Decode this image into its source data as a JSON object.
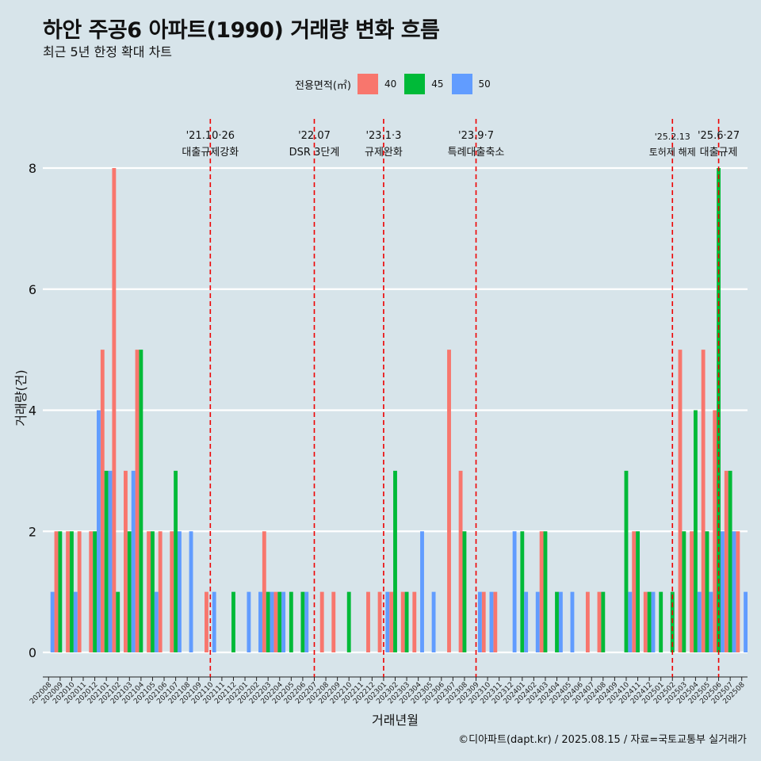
{
  "title": "하안 주공6 아파트(1990) 거래량 변화 흐름",
  "subtitle": "최근 5년 한정 확대 차트",
  "caption": "©디아파트(dapt.kr) / 2025.08.15 / 자료=국토교통부 실거래가",
  "legend": {
    "title": "전용면적(㎡)",
    "items": [
      {
        "label": "40",
        "color": "#f8766d"
      },
      {
        "label": "45",
        "color": "#00ba38"
      },
      {
        "label": "50",
        "color": "#619cff"
      }
    ]
  },
  "chart_data": {
    "type": "bar",
    "xlabel": "거래년월",
    "ylabel": "거래량(건)",
    "ylim": [
      0,
      8
    ],
    "yticks": [
      0,
      2,
      4,
      6,
      8
    ],
    "categories": [
      "202008",
      "202009",
      "202010",
      "202011",
      "202012",
      "202101",
      "202102",
      "202103",
      "202104",
      "202105",
      "202106",
      "202107",
      "202108",
      "202109",
      "202110",
      "202111",
      "202112",
      "202201",
      "202202",
      "202203",
      "202204",
      "202205",
      "202206",
      "202207",
      "202208",
      "202209",
      "202210",
      "202211",
      "202212",
      "202301",
      "202302",
      "202303",
      "202304",
      "202305",
      "202306",
      "202307",
      "202308",
      "202309",
      "202310",
      "202311",
      "202312",
      "202401",
      "202402",
      "202403",
      "202404",
      "202405",
      "202406",
      "202407",
      "202408",
      "202409",
      "202410",
      "202411",
      "202412",
      "202501",
      "202502",
      "202503",
      "202504",
      "202505",
      "202506",
      "202507",
      "202508"
    ],
    "series": [
      {
        "name": "40",
        "color": "#f8766d",
        "values": [
          0,
          2,
          2,
          2,
          2,
          5,
          8,
          3,
          5,
          2,
          2,
          2,
          0,
          0,
          1,
          0,
          0,
          0,
          0,
          2,
          1,
          0,
          0,
          0,
          1,
          1,
          0,
          0,
          1,
          1,
          1,
          1,
          1,
          0,
          0,
          5,
          3,
          0,
          1,
          1,
          0,
          0,
          0,
          2,
          0,
          0,
          0,
          1,
          1,
          0,
          0,
          2,
          1,
          0,
          0,
          5,
          2,
          5,
          4,
          3,
          2
        ]
      },
      {
        "name": "45",
        "color": "#00ba38",
        "values": [
          0,
          2,
          2,
          0,
          2,
          3,
          1,
          2,
          5,
          2,
          0,
          3,
          0,
          0,
          0,
          0,
          1,
          0,
          0,
          1,
          1,
          1,
          1,
          0,
          0,
          0,
          1,
          0,
          0,
          0,
          3,
          1,
          0,
          0,
          0,
          0,
          2,
          0,
          0,
          0,
          0,
          2,
          0,
          2,
          1,
          0,
          0,
          0,
          1,
          0,
          3,
          2,
          1,
          1,
          1,
          2,
          4,
          2,
          8,
          3,
          0
        ]
      },
      {
        "name": "50",
        "color": "#619cff",
        "values": [
          1,
          0,
          1,
          0,
          4,
          3,
          0,
          3,
          0,
          1,
          0,
          2,
          2,
          0,
          1,
          0,
          0,
          1,
          1,
          1,
          1,
          0,
          1,
          0,
          0,
          0,
          0,
          0,
          0,
          1,
          0,
          0,
          2,
          1,
          0,
          0,
          0,
          1,
          1,
          0,
          2,
          1,
          1,
          0,
          1,
          1,
          0,
          0,
          0,
          0,
          1,
          0,
          1,
          0,
          0,
          0,
          1,
          1,
          2,
          2,
          1
        ]
      }
    ],
    "events": [
      {
        "date": "'21.10·26",
        "label": "대출규제강화",
        "at": "202110"
      },
      {
        "date": "'22.07",
        "label": "DSR 3단계",
        "at": "202207"
      },
      {
        "date": "'23.1·3",
        "label": "규제완화",
        "at": "202301"
      },
      {
        "date": "'23.9·7",
        "label": "특례대출축소",
        "at": "202309"
      },
      {
        "date": "'25.2.13",
        "label": "토허제 해제",
        "at": "202502"
      },
      {
        "date": "'25.6·27",
        "label": "대출규제",
        "at": "202506"
      }
    ],
    "grid": true,
    "legend_position": "top"
  }
}
